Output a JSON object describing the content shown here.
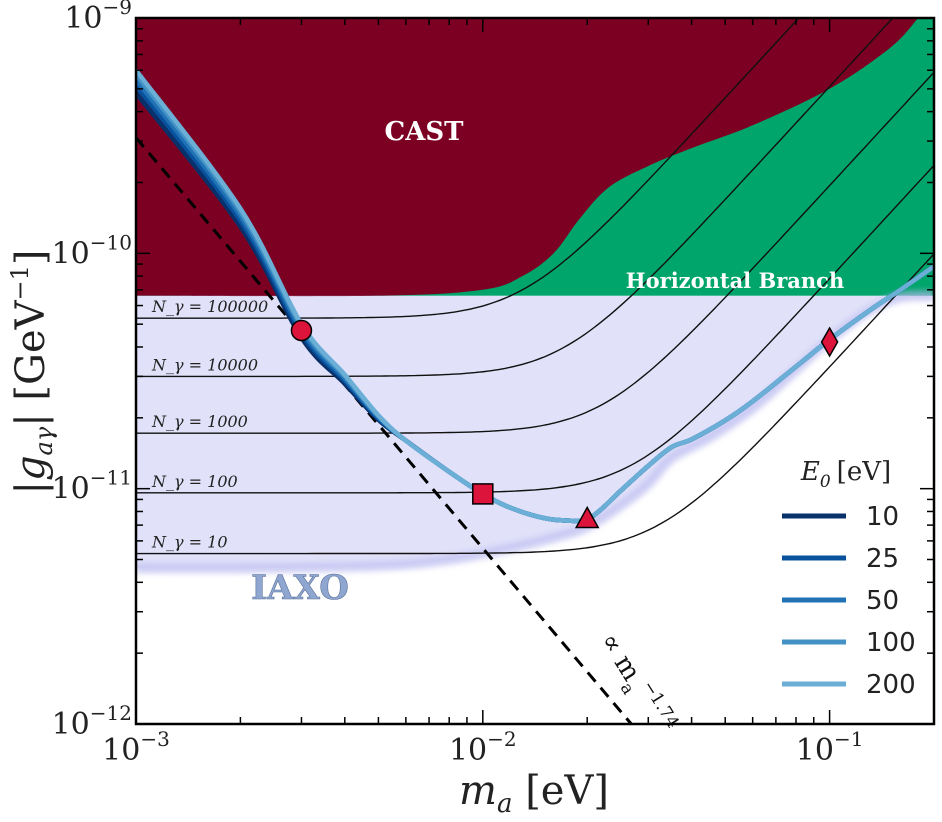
{
  "chart_data": {
    "type": "line",
    "title": "",
    "xlabel": "m_a [eV]",
    "ylabel": "|g_aγ| [GeV^-1]",
    "xscale": "log",
    "yscale": "log",
    "xlim": [
      0.001,
      0.2
    ],
    "ylim": [
      1e-12,
      1e-09
    ],
    "x_ticks": [
      {
        "value": 0.001,
        "base": "10",
        "exp": "−3"
      },
      {
        "value": 0.01,
        "base": "10",
        "exp": "−2"
      },
      {
        "value": 0.1,
        "base": "10",
        "exp": "−1"
      }
    ],
    "y_ticks": [
      {
        "value": 1e-12,
        "base": "10",
        "exp": "−12"
      },
      {
        "value": 1e-11,
        "base": "10",
        "exp": "−11"
      },
      {
        "value": 1e-10,
        "base": "10",
        "exp": "−10"
      },
      {
        "value": 1e-09,
        "base": "10",
        "exp": "−9"
      }
    ],
    "regions": [
      {
        "name": "CAST",
        "color": "#7b0022",
        "label": "CAST",
        "boundary": [
          [
            0.001,
            6.6e-11
          ],
          [
            0.005,
            6.6e-11
          ],
          [
            0.01,
            7e-11
          ],
          [
            0.013,
            8e-11
          ],
          [
            0.016,
            1e-10
          ],
          [
            0.019,
            1.4e-10
          ],
          [
            0.023,
            1.9e-10
          ],
          [
            0.03,
            2.35e-10
          ],
          [
            0.04,
            2.8e-10
          ],
          [
            0.06,
            3.5e-10
          ],
          [
            0.1,
            5e-10
          ],
          [
            0.15,
            7.5e-10
          ],
          [
            0.18,
            1e-09
          ]
        ]
      },
      {
        "name": "Horizontal Branch",
        "color": "#00a56b",
        "label": "Horizontal Branch",
        "limit": 6.6e-11
      },
      {
        "name": "IAXO",
        "color": "#c9c9f4",
        "label": "IAXO"
      }
    ],
    "iaxo_boundary": [
      [
        0.001,
        4.6e-12
      ],
      [
        0.002,
        4.6e-12
      ],
      [
        0.005,
        4.7e-12
      ],
      [
        0.008,
        5e-12
      ],
      [
        0.012,
        5.6e-12
      ],
      [
        0.016,
        6.2e-12
      ],
      [
        0.02,
        6.9e-12
      ],
      [
        0.025,
        8.5e-12
      ],
      [
        0.03,
        1.05e-11
      ],
      [
        0.035,
        1.35e-11
      ],
      [
        0.045,
        1.65e-11
      ],
      [
        0.06,
        2.2e-11
      ],
      [
        0.08,
        3.2e-11
      ],
      [
        0.1,
        4.3e-11
      ],
      [
        0.13,
        5.7e-11
      ],
      [
        0.16,
        6.5e-11
      ],
      [
        0.2,
        6.6e-11
      ]
    ],
    "n_gamma_curves": [
      {
        "label": "N_γ = 100000",
        "plateau": 5.3e-11,
        "knee": 0.013
      },
      {
        "label": "N_γ = 10000",
        "plateau": 3e-11,
        "knee": 0.017
      },
      {
        "label": "N_γ = 1000",
        "plateau": 1.72e-11,
        "knee": 0.022
      },
      {
        "label": "N_γ = 100",
        "plateau": 9.6e-12,
        "knee": 0.027
      },
      {
        "label": "N_γ = 10",
        "plateau": 5.3e-12,
        "knee": 0.032
      }
    ],
    "series": [
      {
        "name": "10",
        "color": "#08306b",
        "scale": 0.8
      },
      {
        "name": "25",
        "color": "#08519c",
        "scale": 0.86
      },
      {
        "name": "50",
        "color": "#2171b5",
        "scale": 0.91
      },
      {
        "name": "100",
        "color": "#4292c6",
        "scale": 0.96
      },
      {
        "name": "200",
        "color": "#6baed6",
        "scale": 1.0
      }
    ],
    "base_curve": [
      [
        0.001,
        6e-10
      ],
      [
        0.002,
        1.55e-10
      ],
      [
        0.003,
        5e-11
      ],
      [
        0.004,
        3.05e-11
      ],
      [
        0.005,
        2.05e-11
      ],
      [
        0.006,
        1.6e-11
      ],
      [
        0.008,
        1.18e-11
      ],
      [
        0.01,
        9.5e-12
      ],
      [
        0.012,
        8.3e-12
      ],
      [
        0.015,
        7.5e-12
      ],
      [
        0.018,
        7.3e-12
      ],
      [
        0.02,
        7.4e-12
      ],
      [
        0.022,
        8.2e-12
      ],
      [
        0.025,
        9.8e-12
      ],
      [
        0.03,
        1.25e-11
      ],
      [
        0.035,
        1.5e-11
      ],
      [
        0.04,
        1.62e-11
      ],
      [
        0.05,
        1.95e-11
      ],
      [
        0.06,
        2.35e-11
      ],
      [
        0.08,
        3.3e-11
      ],
      [
        0.1,
        4.3e-11
      ],
      [
        0.13,
        5.7e-11
      ],
      [
        0.16,
        7e-11
      ],
      [
        0.2,
        8.8e-11
      ]
    ],
    "markers": [
      {
        "shape": "circle",
        "x": 0.003,
        "y": 4.7e-11
      },
      {
        "shape": "square",
        "x": 0.01,
        "y": 9.5e-12
      },
      {
        "shape": "triangle",
        "x": 0.02,
        "y": 7.4e-12
      },
      {
        "shape": "diamond",
        "x": 0.1,
        "y": 4.2e-11
      }
    ],
    "marker_color": "#dc143c",
    "power_law": {
      "label": "∝ m_a^−1.74",
      "prefactor_label": "∝ m",
      "subscript": "a",
      "exponent": "−1.74",
      "slope": -1.74,
      "points": [
        [
          0.001,
          3.1e-10
        ],
        [
          0.0268,
          1e-12
        ]
      ]
    },
    "legend": {
      "title": "E_0 [eV]",
      "title_main": "E",
      "title_sub": "0",
      "title_unit": "[eV]",
      "position": "lower-right"
    }
  }
}
